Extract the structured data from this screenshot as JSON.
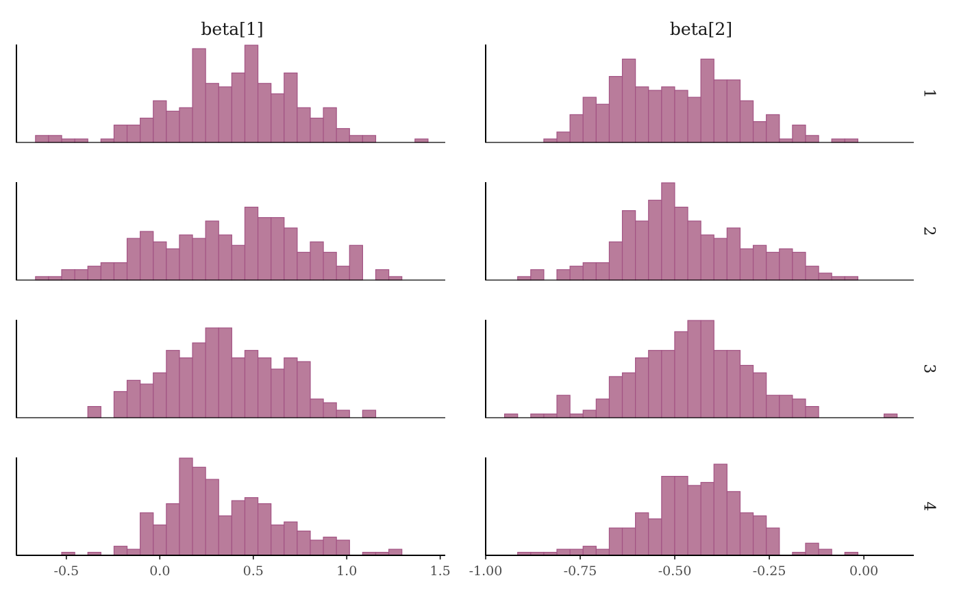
{
  "chart_data": {
    "type": "histogram",
    "facet_cols": [
      "beta[1]",
      "beta[2]"
    ],
    "facet_rows": [
      "1",
      "2",
      "3",
      "4"
    ],
    "colors": {
      "fill": "#b97c9b",
      "outline": "#a25283",
      "axis": "#000000",
      "tick_text": "#4d4d4d"
    },
    "grid": false,
    "x_axes": [
      {
        "param": "beta[1]",
        "xlim": [
          -0.767,
          1.527
        ],
        "ticks": [
          -0.5,
          0.0,
          0.5,
          1.0,
          1.5
        ],
        "tick_labels": [
          "-0.5",
          "0.0",
          "0.5",
          "1.0",
          "1.5"
        ]
      },
      {
        "param": "beta[2]",
        "xlim": [
          -1.0,
          0.132
        ],
        "ticks": [
          -1.0,
          -0.75,
          -0.5,
          -0.25,
          0.0
        ],
        "tick_labels": [
          "-1.00",
          "-0.75",
          "-0.50",
          "-0.25",
          "0.00"
        ]
      }
    ],
    "bins": [
      {
        "param": "beta[1]",
        "start": -0.665,
        "width": 0.07
      },
      {
        "param": "beta[2]",
        "start": -0.95,
        "width": 0.0346
      }
    ],
    "panels": [
      {
        "param": "beta[1]",
        "chain": "1",
        "counts": [
          2,
          2,
          1,
          1,
          0,
          1,
          5,
          5,
          7,
          12,
          9,
          10,
          27,
          17,
          16,
          20,
          28,
          17,
          14,
          20,
          10,
          7,
          10,
          4,
          2,
          2,
          0,
          0,
          0,
          1
        ]
      },
      {
        "param": "beta[2]",
        "chain": "1",
        "counts": [
          0,
          0,
          0,
          1,
          3,
          8,
          13,
          11,
          19,
          24,
          16,
          15,
          16,
          15,
          13,
          24,
          18,
          18,
          12,
          6,
          8,
          1,
          5,
          2,
          0,
          1,
          1,
          0,
          0,
          0
        ]
      },
      {
        "param": "beta[1]",
        "chain": "2",
        "counts": [
          1,
          1,
          3,
          3,
          4,
          5,
          5,
          12,
          14,
          11,
          9,
          13,
          12,
          17,
          13,
          10,
          21,
          18,
          18,
          15,
          8,
          11,
          8,
          4,
          10,
          0,
          3,
          1,
          0,
          0
        ]
      },
      {
        "param": "beta[2]",
        "chain": "2",
        "counts": [
          0,
          1,
          3,
          0,
          3,
          4,
          5,
          5,
          11,
          20,
          17,
          23,
          28,
          21,
          17,
          13,
          12,
          15,
          9,
          10,
          8,
          9,
          8,
          4,
          2,
          1,
          1,
          0,
          0,
          0
        ]
      },
      {
        "param": "beta[1]",
        "chain": "3",
        "counts": [
          0,
          0,
          0,
          0,
          3,
          0,
          7,
          10,
          9,
          12,
          18,
          16,
          20,
          24,
          24,
          16,
          18,
          16,
          13,
          16,
          15,
          5,
          4,
          2,
          0,
          2,
          0,
          0,
          0,
          0
        ]
      },
      {
        "param": "beta[2]",
        "chain": "3",
        "counts": [
          1,
          0,
          1,
          1,
          6,
          1,
          2,
          5,
          11,
          12,
          16,
          18,
          18,
          23,
          26,
          26,
          18,
          18,
          14,
          12,
          6,
          6,
          5,
          3,
          0,
          0,
          0,
          0,
          0,
          1
        ]
      },
      {
        "param": "beta[1]",
        "chain": "4",
        "counts": [
          0,
          0,
          1,
          0,
          1,
          0,
          3,
          2,
          14,
          10,
          17,
          32,
          29,
          25,
          13,
          18,
          19,
          17,
          10,
          11,
          8,
          5,
          6,
          5,
          0,
          1,
          1,
          2,
          0,
          0
        ]
      },
      {
        "param": "beta[2]",
        "chain": "4",
        "counts": [
          0,
          1,
          1,
          1,
          2,
          2,
          3,
          2,
          9,
          9,
          14,
          12,
          26,
          26,
          23,
          24,
          30,
          21,
          14,
          13,
          9,
          0,
          1,
          4,
          2,
          0,
          1,
          0,
          0,
          0
        ]
      }
    ]
  }
}
